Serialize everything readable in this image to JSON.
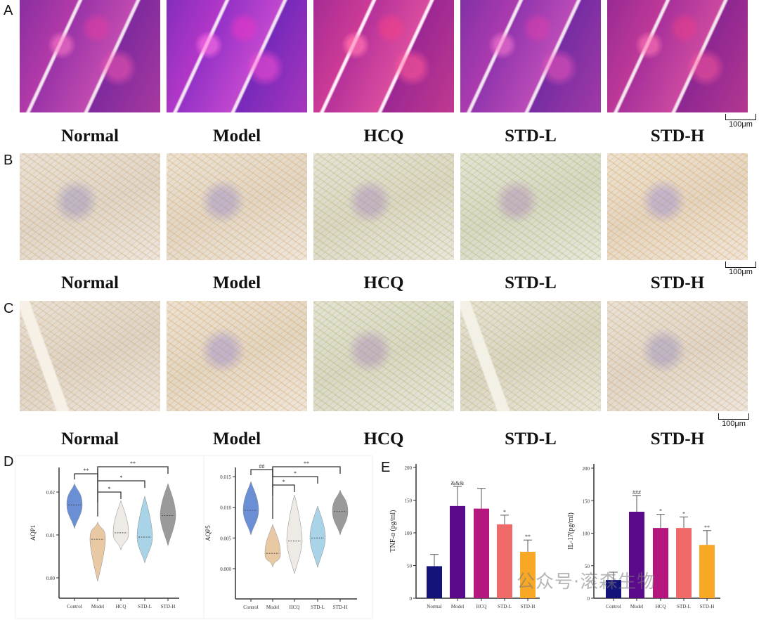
{
  "panel_labels": [
    "A",
    "B",
    "C",
    "D",
    "E"
  ],
  "groups": [
    "Normal",
    "Model",
    "HCQ",
    "STD-L",
    "STD-H"
  ],
  "scale_bar": "100μm",
  "watermark": "公众号·滚森生物",
  "colors": {
    "violin": [
      "#6b8fd4",
      "#e8c9a3",
      "#eeeae6",
      "#a9d3e6",
      "#9a9a9a"
    ],
    "bars": [
      "#14137a",
      "#5c0a8c",
      "#b5177f",
      "#ef6a68",
      "#f9a825"
    ]
  },
  "chart_data": [
    {
      "type": "violin",
      "ylabel": "AQP1",
      "categories": [
        "Control",
        "Model",
        "HCQ",
        "STD-L",
        "STD-H"
      ],
      "yticks": [
        "0.00",
        "0.01",
        "0.02"
      ],
      "ylim": [
        -0.003,
        0.025
      ],
      "median": [
        0.017,
        0.009,
        0.0105,
        0.0095,
        0.0145
      ],
      "min": [
        0.0115,
        -0.0008,
        0.0065,
        0.0035,
        0.0075
      ],
      "max": [
        0.022,
        0.013,
        0.018,
        0.019,
        0.022
      ],
      "significance": [
        {
          "from": "Control",
          "to": "Model",
          "label": "**"
        },
        {
          "from": "Model",
          "to": "HCQ",
          "label": "*"
        },
        {
          "from": "Model",
          "to": "STD-L",
          "label": "*"
        },
        {
          "from": "Model",
          "to": "STD-H",
          "label": "**"
        }
      ]
    },
    {
      "type": "violin",
      "ylabel": "AQP5",
      "categories": [
        "Control",
        "Model",
        "HCQ",
        "STD-L",
        "STD-H"
      ],
      "yticks": [
        "0.000",
        "0.005",
        "0.010",
        "0.015"
      ],
      "ylim": [
        -0.005,
        0.017
      ],
      "median": [
        0.0095,
        0.0025,
        0.0045,
        0.005,
        0.0093
      ],
      "min": [
        0.0055,
        0.0003,
        -0.0008,
        0.0002,
        0.0055
      ],
      "max": [
        0.0142,
        0.0072,
        0.012,
        0.0102,
        0.0128
      ],
      "significance": [
        {
          "from": "Control",
          "to": "Model",
          "label": "##"
        },
        {
          "from": "Model",
          "to": "HCQ",
          "label": "*"
        },
        {
          "from": "Model",
          "to": "STD-L",
          "label": "*"
        },
        {
          "from": "Model",
          "to": "STD-H",
          "label": "**"
        }
      ]
    },
    {
      "type": "bar",
      "ylabel": "TNF-α (pg/ml)",
      "categories": [
        "Normal",
        "Model",
        "HCQ",
        "STD-L",
        "STD-H"
      ],
      "yticks": [
        "0",
        "50",
        "100",
        "150",
        "200"
      ],
      "ylim": [
        0,
        200
      ],
      "values": [
        49,
        141,
        137,
        113,
        71
      ],
      "errors": [
        18,
        30,
        31,
        14,
        18
      ],
      "annotations": [
        "",
        "&&&",
        "",
        "*",
        "**"
      ]
    },
    {
      "type": "bar",
      "ylabel": "IL-17(pg/ml)",
      "categories": [
        "Control",
        "Model",
        "HCQ",
        "STD-L",
        "STD-H"
      ],
      "yticks": [
        "0",
        "50",
        "100",
        "150",
        "200"
      ],
      "ylim": [
        0,
        200
      ],
      "values": [
        28,
        133,
        108,
        108,
        82
      ],
      "errors": [
        12,
        25,
        21,
        17,
        22
      ],
      "annotations": [
        "",
        "###",
        "*",
        "*",
        "**"
      ]
    }
  ]
}
